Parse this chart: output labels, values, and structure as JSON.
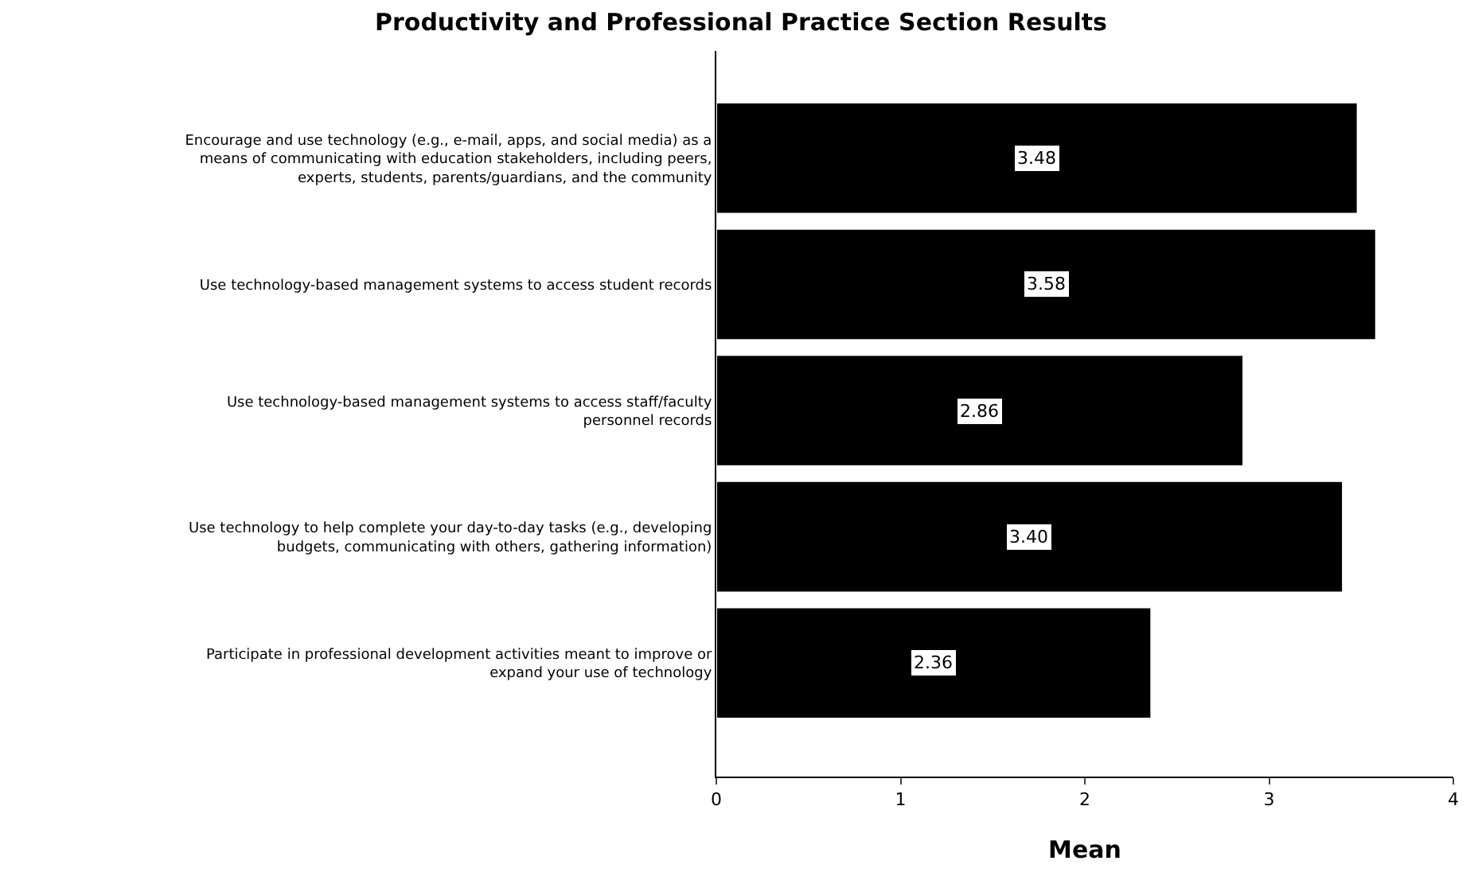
{
  "chart_data": {
    "type": "bar",
    "orientation": "horizontal",
    "title": "Productivity and Professional Practice Section Results",
    "xlabel": "Mean",
    "categories": [
      "Encourage and use technology (e.g., e-mail, apps, and social media) as a means of communicating with education stakeholders, including peers, experts, students, parents/guardians, and the community",
      "Use technology-based management systems to access student records",
      "Use technology-based management systems to access staff/faculty personnel records",
      "Use technology to help complete your day-to-day tasks (e.g., developing budgets, communicating with others, gathering information)",
      "Participate in professional development activities meant to improve or expand your use of technology"
    ],
    "values": [
      3.48,
      3.58,
      2.86,
      3.4,
      2.36
    ],
    "value_labels": [
      "3.48",
      "3.58",
      "2.86",
      "3.40",
      "2.36"
    ],
    "color": "#000000",
    "xlim": [
      0,
      4
    ],
    "xticks": [
      0,
      1,
      2,
      3,
      4
    ]
  }
}
